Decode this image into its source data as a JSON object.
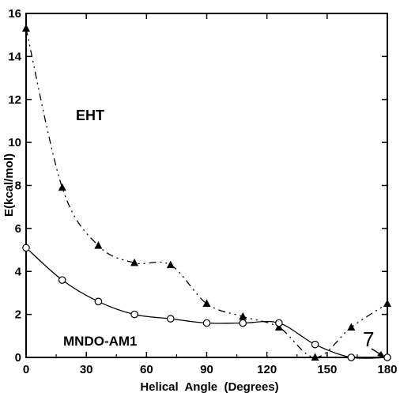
{
  "chart_data": {
    "type": "line",
    "xlabel": "Helical  Angle  (Degrees)",
    "ylabel": "E(kcal/mol)",
    "xlim": [
      0,
      180
    ],
    "ylim": [
      0,
      16
    ],
    "x_ticks": [
      0,
      30,
      60,
      90,
      120,
      150,
      180
    ],
    "y_ticks": [
      0,
      2,
      4,
      6,
      8,
      10,
      12,
      14,
      16
    ],
    "grid": false,
    "series": [
      {
        "name": "EHT",
        "marker": "filled-triangle",
        "line_style": "dash / dash-dot-dot",
        "x": [
          0,
          18,
          36,
          54,
          72,
          90,
          108,
          126,
          144,
          162,
          180
        ],
        "y": [
          15.3,
          7.9,
          5.2,
          4.4,
          4.3,
          2.5,
          1.9,
          1.4,
          0.0,
          1.4,
          2.5
        ]
      },
      {
        "name": "MNDO-AM1",
        "marker": "open-circle",
        "line_style": "solid",
        "x": [
          0,
          18,
          36,
          54,
          72,
          90,
          108,
          126,
          144,
          162,
          180
        ],
        "y": [
          5.1,
          3.6,
          2.6,
          2.0,
          1.8,
          1.6,
          1.6,
          1.6,
          0.6,
          0.0,
          0.0
        ]
      }
    ],
    "annotations": [
      {
        "text": "7",
        "x": 180,
        "y": 0,
        "arrow": true
      }
    ]
  }
}
